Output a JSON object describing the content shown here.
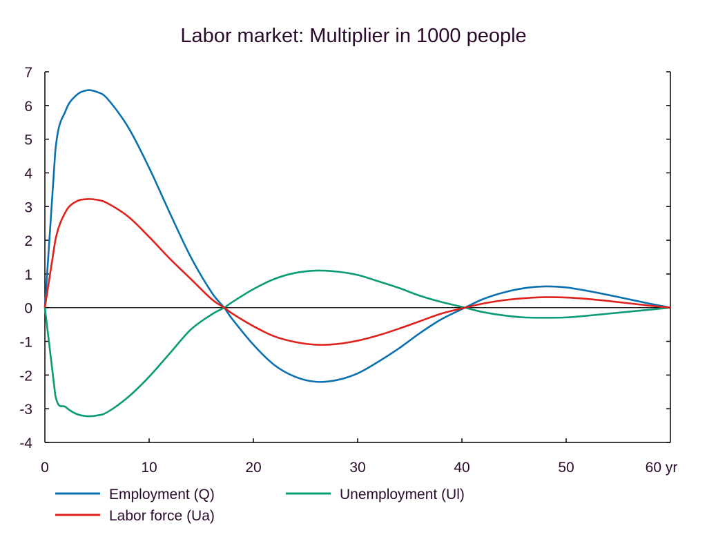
{
  "chart_data": {
    "type": "line",
    "title": "Labor market: Multiplier in 1000 people",
    "xlabel": "",
    "ylabel": "",
    "x_unit_suffix": "yr",
    "xlim": [
      0,
      60
    ],
    "ylim": [
      -4,
      7
    ],
    "x_ticks": [
      0,
      10,
      20,
      30,
      40,
      50,
      60
    ],
    "x_tick_labels": [
      "0",
      "10",
      "20",
      "30",
      "40",
      "50",
      "60 yr"
    ],
    "y_ticks": [
      7,
      6,
      5,
      4,
      3,
      2,
      1,
      0,
      -1,
      -2,
      -3,
      -4
    ],
    "y_tick_labels": [
      "7",
      "6",
      "5",
      "4",
      "3",
      "2",
      "1",
      "0",
      "-1",
      "-2",
      "-3",
      "-4"
    ],
    "grid": false,
    "zero_line": true,
    "legend_position": "bottom",
    "x": [
      0,
      1,
      2,
      3,
      4,
      5,
      6,
      8,
      10,
      12,
      14,
      16,
      17.2,
      18,
      20,
      22,
      24,
      26,
      28,
      30,
      32,
      34,
      36,
      38,
      40.3,
      42,
      44,
      46,
      48,
      50,
      52,
      54,
      56,
      58,
      60
    ],
    "series": [
      {
        "name": "Employment (Q)",
        "color": "#0a70b0",
        "values": [
          0,
          4.65,
          5.85,
          6.3,
          6.45,
          6.4,
          6.2,
          5.35,
          4.15,
          2.8,
          1.5,
          0.45,
          0,
          -0.35,
          -1.1,
          -1.7,
          -2.05,
          -2.2,
          -2.15,
          -1.95,
          -1.6,
          -1.2,
          -0.75,
          -0.35,
          0,
          0.25,
          0.45,
          0.58,
          0.63,
          0.6,
          0.5,
          0.38,
          0.25,
          0.12,
          0
        ]
      },
      {
        "name": "Labor force (Ua)",
        "color": "#e0201a",
        "values": [
          0,
          2.0,
          2.85,
          3.15,
          3.22,
          3.2,
          3.1,
          2.7,
          2.1,
          1.45,
          0.85,
          0.25,
          0,
          -0.18,
          -0.55,
          -0.85,
          -1.02,
          -1.1,
          -1.08,
          -0.98,
          -0.82,
          -0.62,
          -0.4,
          -0.18,
          0,
          0.12,
          0.22,
          0.28,
          0.31,
          0.3,
          0.26,
          0.2,
          0.13,
          0.06,
          0
        ]
      },
      {
        "name": "Unemployment (Ul)",
        "color": "#0a9a74",
        "values": [
          0,
          -2.6,
          -2.95,
          -3.15,
          -3.22,
          -3.2,
          -3.1,
          -2.65,
          -2.05,
          -1.35,
          -0.65,
          -0.2,
          0,
          0.17,
          0.55,
          0.85,
          1.03,
          1.1,
          1.07,
          0.97,
          0.78,
          0.58,
          0.35,
          0.17,
          0,
          -0.13,
          -0.23,
          -0.29,
          -0.3,
          -0.29,
          -0.24,
          -0.18,
          -0.12,
          -0.06,
          0
        ]
      }
    ]
  },
  "legend": {
    "items": [
      {
        "label": "Employment (Q)",
        "color": "#0a70b0"
      },
      {
        "label": "Unemployment (Ul)",
        "color": "#0a9a74"
      },
      {
        "label": "Labor force (Ua)",
        "color": "#e0201a"
      }
    ]
  }
}
